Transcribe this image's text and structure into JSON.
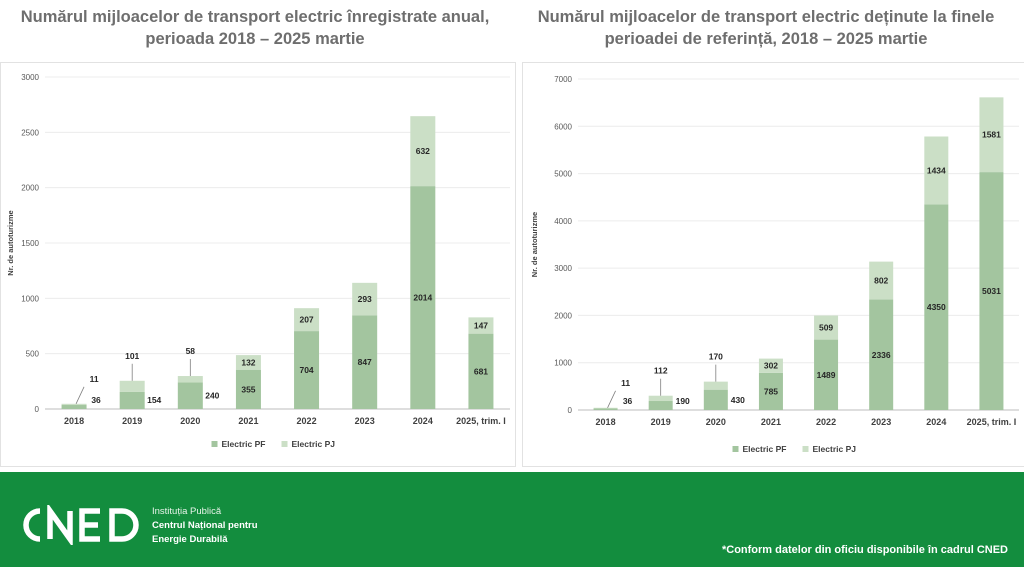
{
  "chart_data": [
    {
      "type": "bar",
      "stacked": true,
      "title": "Numărul mijloacelor de transport electric înregistrate anual, perioada 2018 – 2025 martie",
      "ylabel": "Nr. de autoturizme",
      "ylim": [
        0,
        3000
      ],
      "yticks": [
        0,
        500,
        1000,
        1500,
        2000,
        2500,
        3000
      ],
      "categories": [
        "2018",
        "2019",
        "2020",
        "2021",
        "2022",
        "2023",
        "2024",
        "2025, trim. I"
      ],
      "series": [
        {
          "name": "Electric PF",
          "values": [
            36,
            154,
            240,
            355,
            704,
            847,
            2014,
            681
          ],
          "color": "#a3c59f"
        },
        {
          "name": "Electric PJ",
          "values": [
            11,
            101,
            58,
            132,
            207,
            293,
            632,
            147
          ],
          "color": "#cbdfc6"
        }
      ],
      "legend": "bottom",
      "grid": true
    },
    {
      "type": "bar",
      "stacked": true,
      "title": "Numărul mijloacelor de transport electric deținute la finele perioadei de referință, 2018 – 2025 martie",
      "ylabel": "Nr. de autoturizme",
      "ylim": [
        0,
        7000
      ],
      "yticks": [
        0,
        1000,
        2000,
        3000,
        4000,
        5000,
        6000,
        7000
      ],
      "categories": [
        "2018",
        "2019",
        "2020",
        "2021",
        "2022",
        "2023",
        "2024",
        "2025, trim. I"
      ],
      "series": [
        {
          "name": "Electric PF",
          "values": [
            36,
            190,
            430,
            785,
            1489,
            2336,
            4350,
            5031
          ],
          "color": "#a3c59f"
        },
        {
          "name": "Electric PJ",
          "values": [
            11,
            112,
            170,
            302,
            509,
            802,
            1434,
            1581
          ],
          "color": "#cbdfc6"
        }
      ],
      "legend": "bottom",
      "grid": true
    }
  ],
  "footer": {
    "logo_text": "CNED",
    "institution_line1": "Instituția Publică",
    "institution_line2": "Centrul Național pentru",
    "institution_line3": "Energie Durabilă",
    "note": "*Conform datelor din oficiu disponibile în cadrul CNED",
    "background_color": "#138d3e"
  }
}
